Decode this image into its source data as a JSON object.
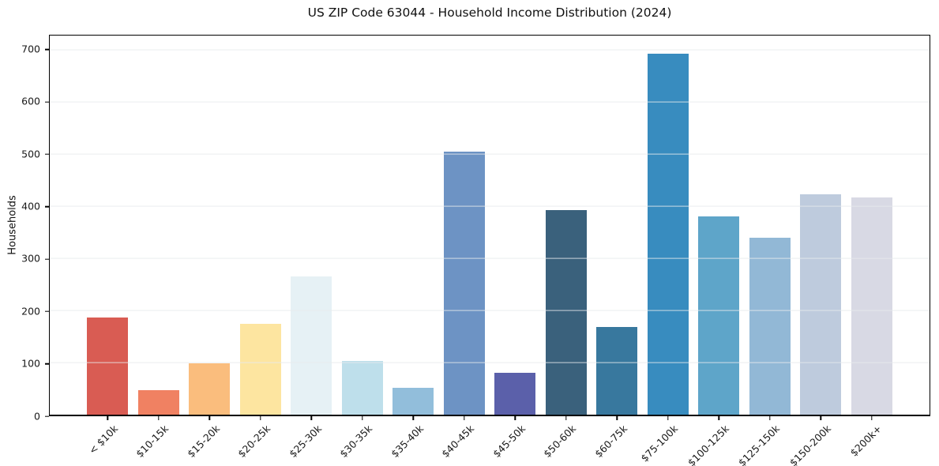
{
  "chart_data": {
    "type": "bar",
    "title": "US ZIP Code 63044 - Household Income Distribution (2024)",
    "xlabel": "",
    "ylabel": "Households",
    "categories": [
      "< $10k",
      "$10-15k",
      "$15-20k",
      "$20-25k",
      "$25-30k",
      "$30-35k",
      "$35-40k",
      "$40-45k",
      "$45-50k",
      "$50-60k",
      "$60-75k",
      "$75-100k",
      "$100-125k",
      "$125-150k",
      "$150-200k",
      "$200k+"
    ],
    "values": [
      187,
      47,
      99,
      174,
      265,
      103,
      52,
      505,
      80,
      393,
      168,
      693,
      380,
      339,
      423,
      417
    ],
    "bar_colors": [
      "#d95c53",
      "#f08162",
      "#fabd7d",
      "#fde5a0",
      "#e6f1f5",
      "#bedfeb",
      "#92bedb",
      "#6d93c4",
      "#5b60aa",
      "#3a617c",
      "#38789e",
      "#388cbf",
      "#5ea5c9",
      "#92b8d6",
      "#becbdd",
      "#d8d9e4"
    ],
    "yticks": [
      0,
      100,
      200,
      300,
      400,
      500,
      600,
      700
    ],
    "ylim": [
      0,
      728
    ],
    "grid": "horizontal",
    "gridline_color": "#e8eaec",
    "legend_position": "none",
    "background_color": "#ffffff",
    "axis_color": "#000000"
  }
}
